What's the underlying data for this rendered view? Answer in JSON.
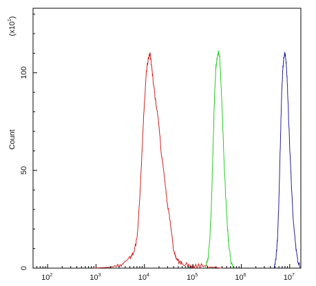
{
  "chart_data": {
    "type": "line",
    "title": "",
    "xlabel": "",
    "ylabel": "Count",
    "y_multiplier_label": "(x10",
    "y_multiplier_exponent": "1",
    "x_scale": "log",
    "xlim": [
      50,
      17000000
    ],
    "ylim": [
      0,
      133
    ],
    "grid": false,
    "legend": "none",
    "x_ticks": [
      {
        "value": 100,
        "base": "10",
        "exp": "2"
      },
      {
        "value": 1000,
        "base": "10",
        "exp": "3"
      },
      {
        "value": 10000,
        "base": "10",
        "exp": "4"
      },
      {
        "value": 100000,
        "base": "10",
        "exp": "5"
      },
      {
        "value": 1000000,
        "base": "10",
        "exp": "6"
      },
      {
        "value": 10000000,
        "base": "10",
        "exp": "7"
      }
    ],
    "y_ticks": [
      {
        "value": 0,
        "label": "0"
      },
      {
        "value": 50,
        "label": "50"
      },
      {
        "value": 100,
        "label": "100"
      }
    ],
    "series": [
      {
        "color": "#cc2222",
        "x": [
          900,
          2000,
          3000,
          4000,
          5000,
          6000,
          7000,
          8000,
          9000,
          10000,
          11000,
          12000,
          13000,
          14000,
          15000,
          16500,
          18000,
          20000,
          22000,
          25000,
          28000,
          32000,
          36000,
          40000,
          45000,
          50000,
          60000,
          75000,
          100000,
          150000,
          250000,
          400000
        ],
        "y": [
          0,
          0.5,
          1.5,
          3,
          5,
          8,
          15,
          35,
          62,
          85,
          101,
          107,
          110,
          104,
          97,
          88,
          81,
          73,
          60,
          49,
          38,
          28,
          18,
          10,
          6,
          3.5,
          2.5,
          1.5,
          1,
          0.8,
          0.5,
          0
        ]
      },
      {
        "color": "#22cc22",
        "x": [
          180000,
          200000,
          220000,
          240000,
          260000,
          280000,
          300000,
          320000,
          340000,
          360000,
          380000,
          410000,
          440000,
          480000,
          520000,
          560000,
          620000,
          680000
        ],
        "y": [
          0,
          3,
          12,
          30,
          60,
          88,
          103,
          108,
          111,
          107,
          95,
          76,
          55,
          35,
          20,
          10,
          3,
          0
        ]
      },
      {
        "color": "#22229a",
        "x": [
          4800000,
          5200000,
          5600000,
          6000000,
          6400000,
          6800000,
          7200000,
          7600000,
          8000000,
          8400000,
          8800000,
          9200000,
          10000000,
          11000000,
          12000000,
          13500000,
          15000000,
          16500000
        ],
        "y": [
          0,
          5,
          15,
          35,
          63,
          88,
          102,
          108,
          110,
          106,
          98,
          86,
          62,
          40,
          22,
          9,
          3,
          0
        ]
      }
    ]
  }
}
